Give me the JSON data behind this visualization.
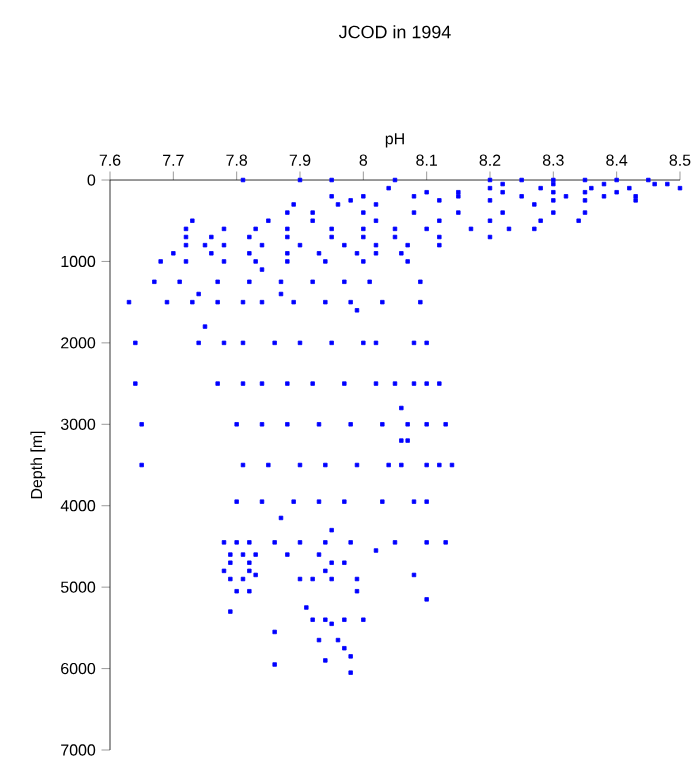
{
  "chart_data": {
    "type": "scatter",
    "title": "JCOD in 1994",
    "xlabel": "pH",
    "ylabel": "Depth [m]",
    "xlim": [
      7.6,
      8.5
    ],
    "ylim": [
      7000,
      0
    ],
    "xticks": [
      7.6,
      7.7,
      7.8,
      7.9,
      8,
      8.1,
      8.2,
      8.3,
      8.4,
      8.5
    ],
    "yticks": [
      0,
      1000,
      2000,
      3000,
      4000,
      5000,
      6000,
      7000
    ],
    "grid": false,
    "marker": "square",
    "series": [
      {
        "color": "#0000ff",
        "x": [
          7.81,
          7.9,
          7.95,
          8.05,
          8.2,
          8.25,
          8.3,
          8.35,
          8.4,
          8.45,
          8.22,
          8.3,
          8.38,
          8.46,
          8.48,
          8.04,
          8.2,
          8.28,
          8.36,
          8.42,
          8.5,
          8.1,
          8.15,
          8.22,
          8.3,
          8.35,
          8.4,
          7.95,
          8.0,
          8.08,
          8.15,
          8.25,
          8.32,
          8.38,
          8.43,
          7.98,
          8.12,
          8.2,
          8.3,
          8.35,
          8.43,
          7.89,
          7.96,
          8.02,
          8.27,
          7.88,
          7.92,
          8.0,
          8.08,
          8.15,
          8.22,
          8.3,
          8.35,
          7.73,
          7.85,
          7.92,
          8.02,
          8.12,
          8.2,
          8.28,
          8.34,
          7.72,
          7.78,
          7.83,
          7.88,
          7.95,
          8.0,
          8.05,
          8.1,
          8.17,
          8.23,
          8.27,
          7.72,
          7.76,
          7.82,
          7.88,
          7.95,
          8.0,
          8.05,
          8.12,
          8.2,
          7.72,
          7.75,
          7.78,
          7.84,
          7.9,
          7.97,
          8.02,
          8.07,
          8.12,
          7.7,
          7.76,
          7.82,
          7.88,
          7.93,
          7.99,
          8.02,
          8.06,
          7.68,
          7.72,
          7.78,
          7.83,
          7.88,
          7.94,
          8.0,
          8.07,
          7.84,
          7.67,
          7.71,
          7.77,
          7.82,
          7.87,
          7.92,
          7.97,
          8.01,
          8.09,
          7.74,
          7.87,
          7.63,
          7.69,
          7.73,
          7.77,
          7.81,
          7.84,
          7.89,
          7.94,
          7.98,
          8.03,
          8.09,
          7.99,
          7.75,
          7.64,
          7.74,
          7.78,
          7.81,
          7.86,
          7.9,
          7.95,
          8.0,
          8.02,
          8.08,
          8.1,
          7.64,
          7.77,
          7.81,
          7.84,
          7.88,
          7.92,
          7.97,
          8.02,
          8.05,
          8.08,
          8.1,
          8.12,
          8.06,
          7.65,
          7.8,
          7.84,
          7.88,
          7.93,
          7.98,
          8.03,
          8.07,
          8.1,
          8.13,
          8.06,
          8.07,
          7.65,
          7.81,
          7.85,
          7.9,
          7.94,
          7.99,
          8.04,
          8.06,
          8.1,
          8.12,
          8.14,
          7.8,
          7.84,
          7.89,
          7.93,
          7.97,
          8.03,
          8.08,
          8.1,
          7.87,
          7.95,
          7.78,
          7.8,
          7.82,
          7.86,
          7.9,
          7.94,
          7.98,
          8.05,
          8.1,
          8.13,
          8.02,
          7.79,
          7.81,
          7.83,
          7.88,
          7.93,
          7.79,
          7.82,
          7.95,
          7.97,
          7.78,
          7.82,
          7.94,
          7.83,
          8.08,
          7.79,
          7.81,
          7.9,
          7.92,
          7.95,
          7.99,
          7.8,
          7.82,
          7.99,
          8.1,
          7.91,
          7.79,
          7.92,
          7.94,
          7.97,
          8.0,
          7.95,
          7.86,
          7.93,
          7.96,
          7.97,
          7.98,
          7.94,
          7.86,
          7.98
        ],
        "values": [
          0,
          0,
          0,
          0,
          0,
          0,
          0,
          0,
          0,
          0,
          50,
          50,
          50,
          50,
          50,
          100,
          100,
          100,
          100,
          100,
          100,
          150,
          150,
          150,
          150,
          150,
          150,
          200,
          200,
          200,
          200,
          200,
          200,
          200,
          200,
          250,
          250,
          250,
          250,
          250,
          250,
          300,
          300,
          300,
          300,
          400,
          400,
          400,
          400,
          400,
          400,
          400,
          400,
          500,
          500,
          500,
          500,
          500,
          500,
          500,
          500,
          600,
          600,
          600,
          600,
          600,
          600,
          600,
          600,
          600,
          600,
          600,
          700,
          700,
          700,
          700,
          700,
          700,
          700,
          700,
          700,
          800,
          800,
          800,
          800,
          800,
          800,
          800,
          800,
          800,
          900,
          900,
          900,
          900,
          900,
          900,
          900,
          900,
          1000,
          1000,
          1000,
          1000,
          1000,
          1000,
          1000,
          1000,
          1100,
          1250,
          1250,
          1250,
          1250,
          1250,
          1250,
          1250,
          1250,
          1250,
          1400,
          1400,
          1500,
          1500,
          1500,
          1500,
          1500,
          1500,
          1500,
          1500,
          1500,
          1500,
          1500,
          1600,
          1800,
          2000,
          2000,
          2000,
          2000,
          2000,
          2000,
          2000,
          2000,
          2000,
          2000,
          2000,
          2500,
          2500,
          2500,
          2500,
          2500,
          2500,
          2500,
          2500,
          2500,
          2500,
          2500,
          2500,
          2800,
          3000,
          3000,
          3000,
          3000,
          3000,
          3000,
          3000,
          3000,
          3000,
          3000,
          3200,
          3200,
          3500,
          3500,
          3500,
          3500,
          3500,
          3500,
          3500,
          3500,
          3500,
          3500,
          3500,
          3950,
          3950,
          3950,
          3950,
          3950,
          3950,
          3950,
          3950,
          4150,
          4300,
          4450,
          4450,
          4450,
          4450,
          4450,
          4450,
          4450,
          4450,
          4450,
          4450,
          4550,
          4600,
          4600,
          4600,
          4600,
          4600,
          4700,
          4700,
          4700,
          4700,
          4800,
          4800,
          4800,
          4850,
          4850,
          4900,
          4900,
          4900,
          4900,
          4900,
          4900,
          5050,
          5050,
          5050,
          5150,
          5250,
          5300,
          5400,
          5400,
          5400,
          5400,
          5450,
          5550,
          5650,
          5650,
          5750,
          5850,
          5900,
          5950,
          6050
        ]
      }
    ]
  }
}
